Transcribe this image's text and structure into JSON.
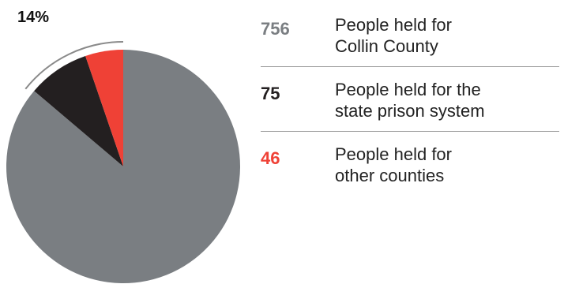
{
  "chart_data": {
    "type": "pie",
    "title": "",
    "start": "12 o'clock",
    "direction": "counterclockwise",
    "slices": [
      {
        "label_lines": [
          "People held for",
          "Collin County"
        ],
        "value": 756,
        "color": "#7a7e82"
      },
      {
        "label_lines": [
          "People held for the",
          "state prison system"
        ],
        "value": 75,
        "color": "#231f20"
      },
      {
        "label_lines": [
          "People held for",
          "other counties"
        ],
        "value": 46,
        "color": "#ef4136"
      }
    ],
    "callout": {
      "text": "14%",
      "value": 14,
      "spans": "non-Collin slices"
    },
    "colors": {
      "value_text_0": "#7a7e82",
      "value_text_1": "#231f20",
      "value_text_2": "#ef4136",
      "callout_arc": "#8a8a8a"
    }
  }
}
